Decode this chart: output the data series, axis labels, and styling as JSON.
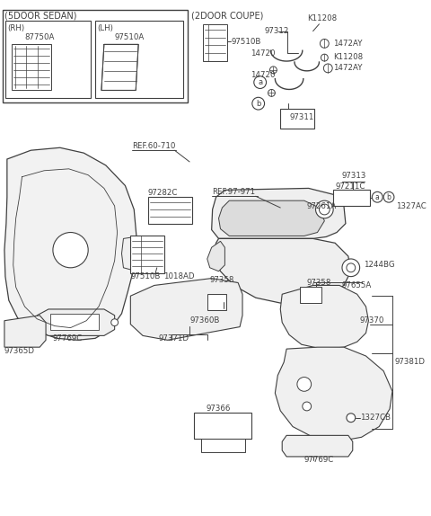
{
  "bg": "#ffffff",
  "lc": "#404040",
  "fs": 6.5,
  "parts": {
    "5door_sedan": "(5DOOR SEDAN)",
    "2door_coupe": "(2DOOR COUPE)",
    "RH": "(RH)",
    "LH": "(LH)",
    "87750A": "87750A",
    "97510A": "97510A",
    "97510B_top": "97510B",
    "K11208_1": "K11208",
    "97312": "97312",
    "1472AY_1": "1472AY",
    "K11208_2": "K11208",
    "1472AY_2": "1472AY",
    "14720_a": "14720",
    "14720_b": "14720",
    "97311": "97311",
    "REF60710": "REF.60-710",
    "REF97971": "REF.97-971",
    "97282C": "97282C",
    "97510B": "97510B",
    "1018AD": "1018AD",
    "97358_l": "97358",
    "97360B": "97360B",
    "97371D": "97371D",
    "97769C_l": "97769C",
    "97365D": "97365D",
    "97313": "97313",
    "97211C": "97211C",
    "97261A": "97261A",
    "1327AC": "1327AC",
    "1244BG": "1244BG",
    "97655A": "97655A",
    "97358_r": "97358",
    "97370": "97370",
    "97381D": "97381D",
    "1327CB": "1327CB",
    "97769C_r": "97769C",
    "97366": "97366"
  }
}
